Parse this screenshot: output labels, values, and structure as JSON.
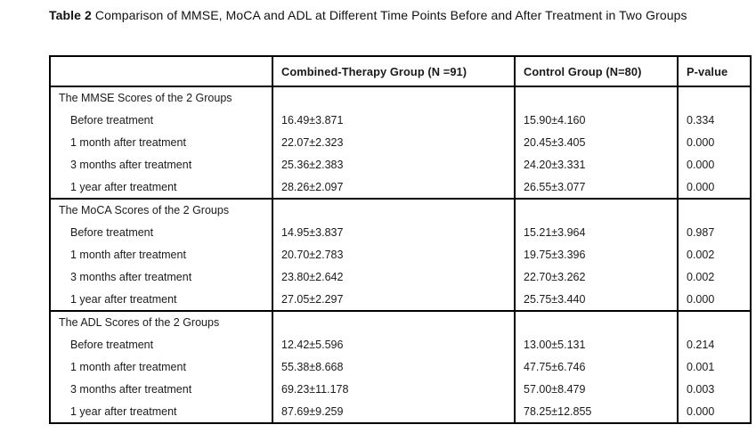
{
  "table": {
    "title_label": "Table 2",
    "title_text": "Comparison of MMSE, MoCA and ADL at Different Time Points Before and After Treatment in Two Groups",
    "columns": [
      "",
      "Combined-Therapy Group (N =91)",
      "Control Group (N=80)",
      "P-value"
    ],
    "sections": [
      {
        "header": "The MMSE Scores of the 2 Groups",
        "rows": [
          {
            "label": "Before treatment",
            "combined": "16.49±3.871",
            "control": "15.90±4.160",
            "p": "0.334"
          },
          {
            "label": "1 month after treatment",
            "combined": "22.07±2.323",
            "control": "20.45±3.405",
            "p": "0.000"
          },
          {
            "label": "3 months after treatment",
            "combined": "25.36±2.383",
            "control": "24.20±3.331",
            "p": "0.000"
          },
          {
            "label": "1 year after treatment",
            "combined": "28.26±2.097",
            "control": "26.55±3.077",
            "p": "0.000"
          }
        ]
      },
      {
        "header": "The MoCA Scores of the 2 Groups",
        "rows": [
          {
            "label": "Before treatment",
            "combined": "14.95±3.837",
            "control": "15.21±3.964",
            "p": "0.987"
          },
          {
            "label": "1 month after treatment",
            "combined": "20.70±2.783",
            "control": "19.75±3.396",
            "p": "0.002"
          },
          {
            "label": "3 months after treatment",
            "combined": "23.80±2.642",
            "control": "22.70±3.262",
            "p": "0.002"
          },
          {
            "label": "1 year after treatment",
            "combined": "27.05±2.297",
            "control": "25.75±3.440",
            "p": "0.000"
          }
        ]
      },
      {
        "header": "The ADL Scores of the 2 Groups",
        "rows": [
          {
            "label": "Before treatment",
            "combined": "12.42±5.596",
            "control": "13.00±5.131",
            "p": "0.214"
          },
          {
            "label": "1 month after treatment",
            "combined": "55.38±8.668",
            "control": "47.75±6.746",
            "p": "0.001"
          },
          {
            "label": "3 months after treatment",
            "combined": "69.23±11.178",
            "control": "57.00±8.479",
            "p": "0.003"
          },
          {
            "label": "1 year after treatment",
            "combined": "87.69±9.259",
            "control": "78.25±12.855",
            "p": "0.000"
          }
        ]
      }
    ]
  }
}
